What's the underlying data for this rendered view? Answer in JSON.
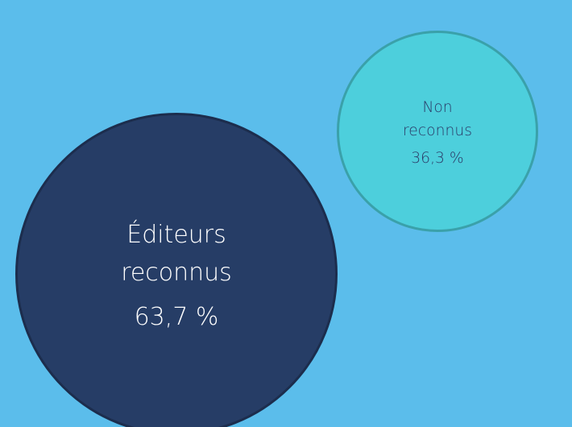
{
  "chart_data": {
    "type": "bubble",
    "categories": [
      "Éditeurs reconnus",
      "Non reconnus"
    ],
    "values": [
      63.7,
      36.3
    ],
    "value_labels": [
      "63,7 %",
      "36,3 %"
    ],
    "colors": [
      "#263d66",
      "#4dcfdc"
    ],
    "border_colors": [
      "#1c2d4d",
      "#3aa1aa"
    ],
    "text_colors": [
      "#ffffff",
      "#2b3a67"
    ]
  }
}
